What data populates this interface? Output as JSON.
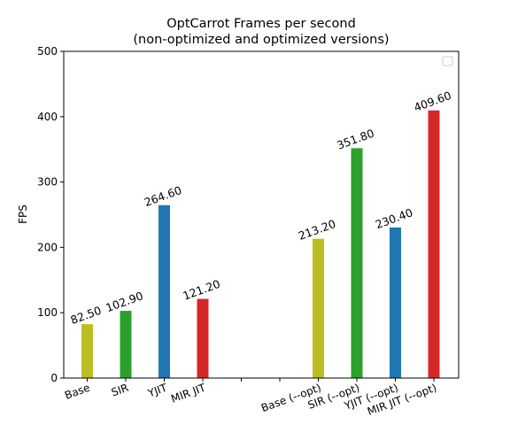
{
  "chart_data": {
    "type": "bar",
    "title": "OptCarrot Frames per second",
    "subtitle": "(non-optimized and optimized versions)",
    "xlabel": "",
    "ylabel": "FPS",
    "ylim": [
      0,
      500
    ],
    "yticks": [
      "0",
      "100",
      "200",
      "300",
      "400",
      "500"
    ],
    "grid": false,
    "legend": "top-right (empty)",
    "categories": [
      "Base",
      "SIR",
      "YJIT",
      "MIR JIT",
      "",
      "",
      "Base (--opt)",
      "SIR (--opt)",
      "YJIT (--opt)",
      "MIR JIT (--opt)"
    ],
    "values": [
      82.5,
      102.9,
      264.6,
      121.2,
      null,
      null,
      213.2,
      351.8,
      230.4,
      409.6
    ],
    "value_labels": [
      "82.50",
      "102.90",
      "264.60",
      "121.20",
      "",
      "",
      "213.20",
      "351.80",
      "230.40",
      "409.60"
    ],
    "colors": [
      "#bcbd22",
      "#2ca02c",
      "#1f77b4",
      "#d62728",
      "",
      "",
      "#bcbd22",
      "#2ca02c",
      "#1f77b4",
      "#d62728"
    ]
  }
}
